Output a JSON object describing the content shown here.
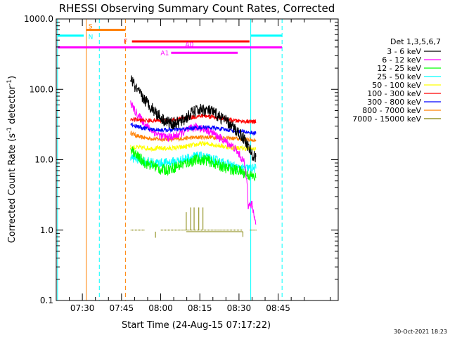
{
  "chart_data": {
    "type": "line",
    "title": "RHESSI Observing Summary Count Rates, Corrected",
    "xlabel": "Start Time (24-Aug-15 07:17:22)",
    "ylabel_main": "Corrected Count Rate (s",
    "ylabel_sup1": "-1",
    "ylabel_mid": " detector",
    "ylabel_sup2": "-1",
    "ylabel_end": ")",
    "y_scale": "log",
    "xlim_min": [
      440,
      548
    ],
    "ylim": [
      0.1,
      1000
    ],
    "x_ticks": [
      {
        "min": 450,
        "label": "07:30"
      },
      {
        "min": 465,
        "label": "07:45"
      },
      {
        "min": 480,
        "label": "08:00"
      },
      {
        "min": 495,
        "label": "08:15"
      },
      {
        "min": 510,
        "label": "08:30"
      },
      {
        "min": 525,
        "label": "08:45"
      }
    ],
    "y_ticks": [
      {
        "v": 0.1,
        "label": "0.1"
      },
      {
        "v": 1,
        "label": "1.0"
      },
      {
        "v": 10,
        "label": "10.0"
      },
      {
        "v": 100,
        "label": "100.0"
      },
      {
        "v": 1000,
        "label": "1000.0"
      }
    ],
    "timestamp": "30-Oct-2021 18:23",
    "legend_title": "Det 1,3,5,6,7",
    "legend_position": "right",
    "series": [
      {
        "name": "3 - 6 keV",
        "color": "#000000",
        "points": [
          [
            468.5,
            150
          ],
          [
            470,
            110
          ],
          [
            472,
            85
          ],
          [
            474,
            70
          ],
          [
            476,
            58
          ],
          [
            478,
            48
          ],
          [
            480,
            40
          ],
          [
            482,
            35
          ],
          [
            484,
            33
          ],
          [
            486,
            33
          ],
          [
            488,
            35
          ],
          [
            490,
            40
          ],
          [
            492,
            46
          ],
          [
            494,
            50
          ],
          [
            496,
            52
          ],
          [
            498,
            50
          ],
          [
            500,
            47
          ],
          [
            502,
            42
          ],
          [
            504,
            38
          ],
          [
            506,
            33
          ],
          [
            508,
            28
          ],
          [
            510,
            24
          ],
          [
            512,
            20
          ],
          [
            514,
            14
          ],
          [
            515.5,
            11
          ],
          [
            516.5,
            11
          ]
        ]
      },
      {
        "name": "6 - 12 keV",
        "color": "#ff00ff",
        "points": [
          [
            468.5,
            65
          ],
          [
            470,
            50
          ],
          [
            472,
            40
          ],
          [
            474,
            32
          ],
          [
            476,
            27
          ],
          [
            478,
            24
          ],
          [
            480,
            22
          ],
          [
            482,
            21
          ],
          [
            484,
            21
          ],
          [
            486,
            22
          ],
          [
            488,
            24
          ],
          [
            490,
            26
          ],
          [
            492,
            28
          ],
          [
            494,
            29
          ],
          [
            496,
            28
          ],
          [
            498,
            26
          ],
          [
            500,
            24
          ],
          [
            502,
            21
          ],
          [
            504,
            19
          ],
          [
            506,
            17
          ],
          [
            508,
            15
          ],
          [
            510,
            12
          ],
          [
            512,
            9
          ],
          [
            513.2,
            5
          ],
          [
            513.5,
            2.2
          ],
          [
            515,
            2.3
          ],
          [
            516.5,
            1.2
          ]
        ]
      },
      {
        "name": "12 - 25 keV",
        "color": "#00ff00",
        "points": [
          [
            468.5,
            15
          ],
          [
            470,
            12
          ],
          [
            472,
            10.5
          ],
          [
            474,
            9
          ],
          [
            476,
            8.5
          ],
          [
            478,
            8
          ],
          [
            480,
            7.2
          ],
          [
            482,
            7.2
          ],
          [
            484,
            7.5
          ],
          [
            486,
            8
          ],
          [
            488,
            8.5
          ],
          [
            490,
            9
          ],
          [
            492,
            9.5
          ],
          [
            494,
            10
          ],
          [
            496,
            10
          ],
          [
            498,
            9.8
          ],
          [
            500,
            9
          ],
          [
            502,
            8.5
          ],
          [
            504,
            7.8
          ],
          [
            506,
            7.5
          ],
          [
            508,
            7.2
          ],
          [
            510,
            7
          ],
          [
            512,
            6.5
          ],
          [
            514,
            6
          ],
          [
            516.5,
            5.5
          ]
        ]
      },
      {
        "name": "25 - 50 keV",
        "color": "#00ffff",
        "points": [
          [
            468.5,
            11
          ],
          [
            470,
            10.5
          ],
          [
            472,
            10
          ],
          [
            474,
            9.5
          ],
          [
            476,
            9.2
          ],
          [
            478,
            9
          ],
          [
            480,
            9
          ],
          [
            482,
            9
          ],
          [
            484,
            9.2
          ],
          [
            486,
            9.5
          ],
          [
            488,
            10
          ],
          [
            490,
            10.5
          ],
          [
            492,
            11
          ],
          [
            494,
            11.2
          ],
          [
            496,
            11
          ],
          [
            498,
            10.5
          ],
          [
            500,
            10
          ],
          [
            502,
            9.5
          ],
          [
            504,
            9
          ],
          [
            506,
            8.5
          ],
          [
            508,
            8
          ],
          [
            510,
            7.5
          ],
          [
            512,
            7.5
          ],
          [
            514,
            7.5
          ],
          [
            516.5,
            7.5
          ]
        ]
      },
      {
        "name": "50 - 100 keV",
        "color": "#ffff00",
        "points": [
          [
            468.5,
            15
          ],
          [
            472,
            14.8
          ],
          [
            476,
            14.5
          ],
          [
            480,
            14.5
          ],
          [
            484,
            14.5
          ],
          [
            488,
            15
          ],
          [
            492,
            16
          ],
          [
            496,
            17
          ],
          [
            500,
            16.5
          ],
          [
            504,
            15.5
          ],
          [
            508,
            14.8
          ],
          [
            512,
            14.5
          ],
          [
            516.5,
            14
          ]
        ]
      },
      {
        "name": "100 - 300 keV",
        "color": "#ff0000",
        "points": [
          [
            468.5,
            38
          ],
          [
            472,
            36.5
          ],
          [
            476,
            36
          ],
          [
            480,
            36
          ],
          [
            484,
            36.5
          ],
          [
            488,
            38
          ],
          [
            492,
            40
          ],
          [
            496,
            42
          ],
          [
            500,
            41
          ],
          [
            504,
            38
          ],
          [
            508,
            36
          ],
          [
            512,
            35
          ],
          [
            516.5,
            34.5
          ]
        ]
      },
      {
        "name": "300 - 800 keV",
        "color": "#0000ff",
        "points": [
          [
            468.5,
            32
          ],
          [
            472,
            29
          ],
          [
            476,
            27
          ],
          [
            480,
            26.5
          ],
          [
            484,
            26.5
          ],
          [
            488,
            27
          ],
          [
            492,
            28
          ],
          [
            496,
            29
          ],
          [
            500,
            28.5
          ],
          [
            504,
            27
          ],
          [
            508,
            26
          ],
          [
            512,
            25
          ],
          [
            516.5,
            23.5
          ]
        ]
      },
      {
        "name": "800 - 7000 keV",
        "color": "#ff8000",
        "points": [
          [
            468.5,
            24
          ],
          [
            472,
            21
          ],
          [
            476,
            20
          ],
          [
            480,
            19.5
          ],
          [
            484,
            19.5
          ],
          [
            488,
            20
          ],
          [
            492,
            20.5
          ],
          [
            496,
            21
          ],
          [
            500,
            21
          ],
          [
            504,
            20.5
          ],
          [
            508,
            20
          ],
          [
            512,
            19.5
          ],
          [
            516.5,
            19
          ]
        ]
      },
      {
        "name": "7000 - 15000 keV",
        "color": "#808000",
        "points": [
          [
            468.5,
            1.0
          ],
          [
            472,
            1.0
          ],
          [
            476,
            1.0
          ],
          [
            480,
            1.0
          ],
          [
            484,
            1.0
          ],
          [
            488,
            1.0
          ],
          [
            492,
            1.0
          ],
          [
            496,
            1.0
          ],
          [
            500,
            1.0
          ],
          [
            504,
            1.0
          ],
          [
            508,
            1.0
          ],
          [
            512,
            1.0
          ],
          [
            516.5,
            1.0
          ]
        ]
      }
    ],
    "events": {
      "saa_bar": {
        "label": "S",
        "color": "#ff8000",
        "start": 451.5,
        "end": 466.5,
        "y": 700
      },
      "night_bars": [
        {
          "label": "N",
          "color": "#00ffff",
          "start": 440.5,
          "end": 450.5,
          "y": 580
        },
        {
          "label": "",
          "color": "#00ffff",
          "start": 514.5,
          "end": 526.5,
          "y": 580
        }
      ],
      "flare_bar": {
        "label": "F",
        "color": "#ff0000",
        "start": 469,
        "end": 514,
        "y": 480
      },
      "attenuator_a0": {
        "label": "A0",
        "color": "#ff00ff",
        "start": 440.5,
        "end": 526.5,
        "y": 395
      },
      "attenuator_a1": {
        "label": "A1",
        "color": "#ff00ff",
        "start": 484,
        "end": 509.5,
        "y": 330
      },
      "vlines": [
        {
          "min": 440.5,
          "color": "#00ffff",
          "dash": false
        },
        {
          "min": 451.5,
          "color": "#ff8000",
          "dash": false
        },
        {
          "min": 456.5,
          "color": "#00ffff",
          "dash": true
        },
        {
          "min": 466.5,
          "color": "#ff8000",
          "dash": true
        },
        {
          "min": 514.5,
          "color": "#00ffff",
          "dash": false
        },
        {
          "min": 526.5,
          "color": "#00ffff",
          "dash": true
        }
      ]
    }
  }
}
